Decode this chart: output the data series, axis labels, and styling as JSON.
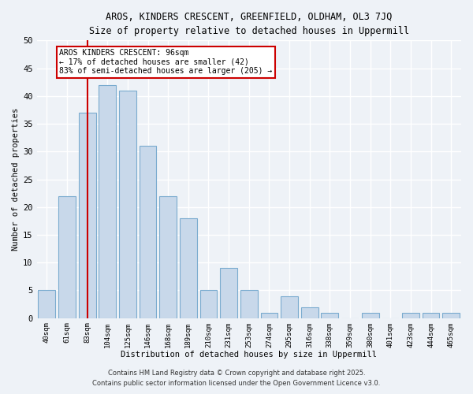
{
  "title1": "AROS, KINDERS CRESCENT, GREENFIELD, OLDHAM, OL3 7JQ",
  "title2": "Size of property relative to detached houses in Uppermill",
  "xlabel": "Distribution of detached houses by size in Uppermill",
  "ylabel": "Number of detached properties",
  "categories": [
    "40sqm",
    "61sqm",
    "83sqm",
    "104sqm",
    "125sqm",
    "146sqm",
    "168sqm",
    "189sqm",
    "210sqm",
    "231sqm",
    "253sqm",
    "274sqm",
    "295sqm",
    "316sqm",
    "338sqm",
    "359sqm",
    "380sqm",
    "401sqm",
    "423sqm",
    "444sqm",
    "465sqm"
  ],
  "values": [
    5,
    22,
    37,
    42,
    41,
    31,
    22,
    18,
    5,
    9,
    5,
    1,
    4,
    2,
    1,
    0,
    1,
    0,
    1,
    1,
    1
  ],
  "bar_color": "#c8d8ea",
  "bar_edge_color": "#7aabcf",
  "vline_x_idx": 2,
  "vline_color": "#cc0000",
  "annotation_text": "AROS KINDERS CRESCENT: 96sqm\n← 17% of detached houses are smaller (42)\n83% of semi-detached houses are larger (205) →",
  "annotation_box_color": "#ffffff",
  "annotation_box_edge": "#cc0000",
  "ylim": [
    0,
    50
  ],
  "yticks": [
    0,
    5,
    10,
    15,
    20,
    25,
    30,
    35,
    40,
    45,
    50
  ],
  "bg_color": "#eef2f7",
  "grid_color": "#ffffff",
  "footer1": "Contains HM Land Registry data © Crown copyright and database right 2025.",
  "footer2": "Contains public sector information licensed under the Open Government Licence v3.0."
}
